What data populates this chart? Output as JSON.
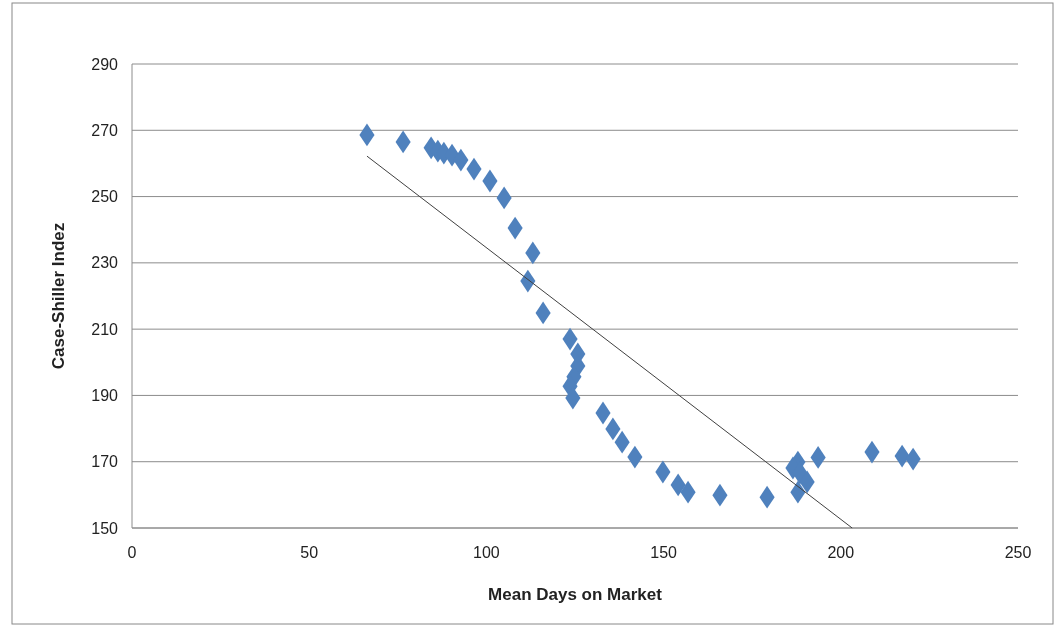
{
  "chart_data": {
    "type": "scatter",
    "xlabel": "Mean Days on Market",
    "ylabel": "Case-Shiller Indez",
    "xlim": [
      0,
      250
    ],
    "xticks": [
      0,
      50,
      100,
      150,
      200,
      250
    ],
    "ylim": [
      150,
      290
    ],
    "yticks": [
      150,
      170,
      190,
      210,
      230,
      250,
      270,
      290
    ],
    "grid": "y",
    "marker": "diamond",
    "series": [
      {
        "color": "#4f81bd",
        "x": [
          66.3,
          76.5,
          84.4,
          86.3,
          88.0,
          90.3,
          92.8,
          96.5,
          101.0,
          105.0,
          108.1,
          113.1,
          111.7,
          116.0,
          123.6,
          125.8,
          125.8,
          124.7,
          123.6,
          124.4,
          132.9,
          135.7,
          138.3,
          141.9,
          149.8,
          154.1,
          156.9,
          165.9,
          179.2,
          187.9,
          187.9,
          186.5,
          188.5,
          190.5,
          193.6,
          208.8,
          217.3,
          220.4
        ],
        "values": [
          268.6,
          266.5,
          264.7,
          263.7,
          263.1,
          262.5,
          261.0,
          258.3,
          254.7,
          249.6,
          240.5,
          233.0,
          224.5,
          214.9,
          207.0,
          202.5,
          198.9,
          195.6,
          192.8,
          189.2,
          184.7,
          179.9,
          175.9,
          171.4,
          166.9,
          163.0,
          160.8,
          159.9,
          159.3,
          160.8,
          169.9,
          168.1,
          166.6,
          163.9,
          171.3,
          172.9,
          171.7,
          170.8
        ]
      },
      {
        "type": "line",
        "marker": "none",
        "color": "#404040",
        "x": [
          66.3,
          203.2
        ],
        "values": [
          262.2,
          150
        ]
      }
    ]
  }
}
